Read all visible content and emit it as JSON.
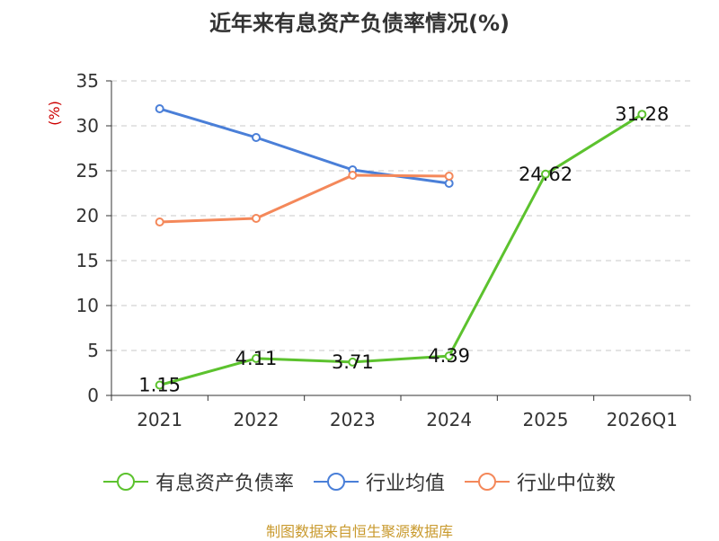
{
  "chart_data": {
    "type": "line",
    "title": "近年来有息资产负债率情况(%)",
    "ylabel": "(%)",
    "xlabel": "",
    "categories": [
      "2021",
      "2022",
      "2023",
      "2024",
      "2025",
      "2026Q1"
    ],
    "ylim": [
      0,
      35
    ],
    "yticks": [
      0,
      5,
      10,
      15,
      20,
      25,
      30,
      35
    ],
    "grid": true,
    "legend_position": "bottom",
    "series": [
      {
        "name": "有息资产负债率",
        "color": "#5cc22e",
        "values": [
          1.15,
          4.11,
          3.71,
          4.39,
          24.62,
          31.28
        ],
        "show_labels": true
      },
      {
        "name": "行业均值",
        "color": "#4a7fd8",
        "values": [
          31.9,
          28.7,
          25.1,
          23.6,
          null,
          null
        ],
        "show_labels": false
      },
      {
        "name": "行业中位数",
        "color": "#f4885a",
        "values": [
          19.3,
          19.7,
          24.5,
          24.4,
          null,
          null
        ],
        "show_labels": false
      }
    ]
  },
  "source_note": "制图数据来自恒生聚源数据库"
}
